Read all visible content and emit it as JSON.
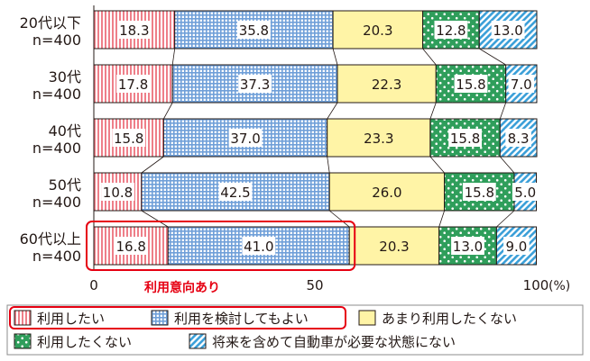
{
  "chart_data": {
    "type": "bar",
    "orientation": "horizontal",
    "stacked": true,
    "categories": [
      {
        "line1": "20代以下",
        "line2": "n=400"
      },
      {
        "line1": "30代",
        "line2": "n=400"
      },
      {
        "line1": "40代",
        "line2": "n=400"
      },
      {
        "line1": "50代",
        "line2": "n=400"
      },
      {
        "line1": "60代以上",
        "line2": "n=400"
      }
    ],
    "series": [
      {
        "name": "利用したい",
        "values": [
          18.3,
          17.8,
          15.8,
          10.8,
          16.8
        ],
        "labels": [
          "18.3",
          "17.8",
          "15.8",
          "10.8",
          "16.8"
        ],
        "color": "#f08c95",
        "pattern": "vertical-stripes"
      },
      {
        "name": "利用を検討してもよい",
        "values": [
          35.8,
          37.3,
          37.0,
          42.5,
          41.0
        ],
        "labels": [
          "35.8",
          "37.3",
          "37.0",
          "42.5",
          "41.0"
        ],
        "color": "#7aa7dc",
        "pattern": "grid"
      },
      {
        "name": "あまり利用したくない",
        "values": [
          20.3,
          22.3,
          23.3,
          26.0,
          20.3
        ],
        "labels": [
          "20.3",
          "22.3",
          "23.3",
          "26.0",
          "20.3"
        ],
        "color": "#fff4a6",
        "pattern": "solid"
      },
      {
        "name": "利用したくない",
        "values": [
          12.8,
          15.8,
          15.8,
          15.8,
          13.0
        ],
        "labels": [
          "12.8",
          "15.8",
          "15.8",
          "15.8",
          "13.0"
        ],
        "color": "#2f9e5b",
        "pattern": "dots"
      },
      {
        "name": "将来を含めて自動車が必要な状態にない",
        "values": [
          13.0,
          7.0,
          8.3,
          5.0,
          9.0
        ],
        "labels": [
          "13.0",
          "7.0",
          "8.3",
          "5.0",
          "9.0"
        ],
        "color": "#3a9fd8",
        "pattern": "diagonal-stripes"
      }
    ],
    "xlim": [
      0,
      100
    ],
    "ticks": [
      0,
      50,
      100
    ],
    "tick_labels": [
      "0",
      "50",
      "100"
    ],
    "unit_label": "(%)",
    "annotation": "利用意向あり",
    "highlight_category": "60代以上",
    "highlight_color": "#e60012",
    "legend_position": "bottom",
    "grid": false
  }
}
